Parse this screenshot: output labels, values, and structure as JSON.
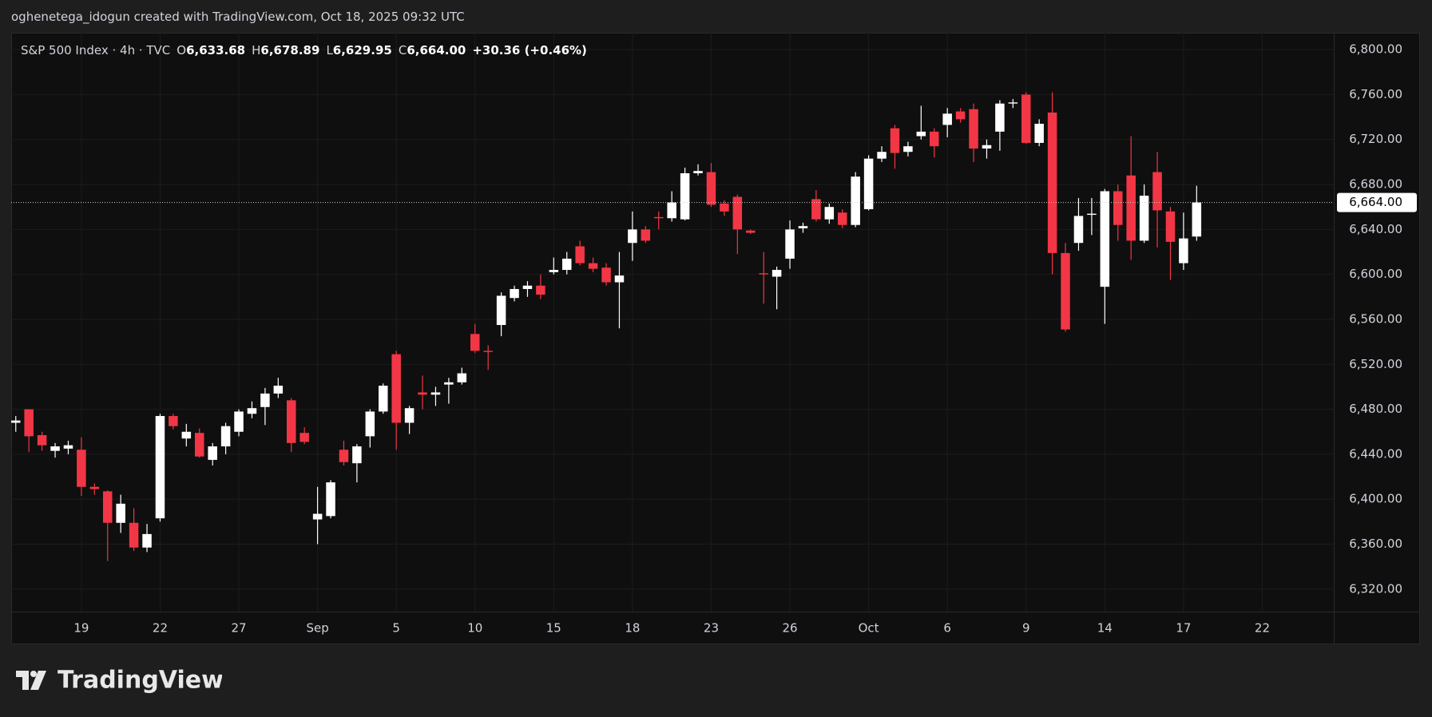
{
  "header": {
    "attribution": "oghenetega_idogun created with TradingView.com, Oct 18, 2025 09:32 UTC"
  },
  "footer": {
    "brand": "TradingView"
  },
  "chart_data": {
    "type": "candlestick",
    "title": "S&P 500 Index · 4h · TVC",
    "ohlc_legend": [
      {
        "key": "O",
        "value": "6,633.68"
      },
      {
        "key": "H",
        "value": "6,678.89"
      },
      {
        "key": "L",
        "value": "6,629.95"
      },
      {
        "key": "C",
        "value": "6,664.00"
      }
    ],
    "change": "+30.36 (+0.46%)",
    "categories": [
      null,
      null,
      null,
      null,
      null,
      "19",
      null,
      null,
      null,
      null,
      null,
      "22",
      null,
      null,
      null,
      null,
      null,
      "27",
      null,
      null,
      null,
      null,
      null,
      "Sep",
      null,
      null,
      null,
      null,
      null,
      "5",
      null,
      null,
      null,
      null,
      null,
      "10",
      null,
      null,
      null,
      null,
      null,
      "15",
      null,
      null,
      null,
      null,
      null,
      "18",
      null,
      null,
      null,
      null,
      null,
      "23",
      null,
      null,
      null,
      null,
      null,
      "26",
      null,
      null,
      null,
      null,
      null,
      "Oct",
      null,
      null,
      null,
      null,
      null,
      "6",
      null,
      null,
      null,
      null,
      null,
      "9",
      null,
      null,
      null,
      null,
      null,
      "14",
      null,
      null,
      null,
      null,
      null,
      "17",
      null,
      null,
      null,
      null,
      null,
      "22"
    ],
    "open": [
      6468,
      6480,
      6457,
      6443,
      6445,
      6444,
      6411,
      6407,
      6379,
      6379,
      6357,
      6383,
      6474,
      6454,
      6459,
      6435,
      6447,
      6460,
      6476,
      6482,
      6494,
      6488,
      6459,
      6382,
      6385,
      6444,
      6432,
      6456,
      6478,
      6529,
      6468,
      6495,
      6493,
      6502,
      6504,
      6547,
      6532,
      6555,
      6579,
      6587,
      6590,
      6602,
      6604,
      6625,
      6610,
      6606,
      6593,
      6628,
      6640,
      6651,
      6650,
      6649,
      6690,
      6691,
      6663,
      6669,
      6639,
      6601,
      6598,
      6614,
      6641,
      6667,
      6649,
      6655,
      6644,
      6658,
      6703,
      6730,
      6709,
      6723,
      6727,
      6733,
      6745,
      6747,
      6712,
      6727,
      6752,
      6760,
      6717,
      6744,
      6619,
      6628,
      6653,
      6589,
      6674,
      6688,
      6630,
      6691,
      6656,
      6610,
      6633.68,
      null,
      null,
      null,
      null,
      null
    ],
    "high": [
      6474,
      6480,
      6460,
      6450,
      6452,
      6455,
      6414,
      6408,
      6404,
      6392,
      6378,
      6476,
      6476,
      6467,
      6463,
      6450,
      6468,
      6480,
      6487,
      6499,
      6508,
      6490,
      6464,
      6411,
      6417,
      6452,
      6449,
      6480,
      6503,
      6532,
      6483,
      6510,
      6500,
      6508,
      6517,
      6556,
      6537,
      6584,
      6590,
      6594,
      6600,
      6615,
      6620,
      6630,
      6615,
      6610,
      6620,
      6656,
      6643,
      6656,
      6674,
      6695,
      6698,
      6699,
      6666,
      6671,
      6640,
      6620,
      6607,
      6648,
      6646,
      6675,
      6663,
      6658,
      6691,
      6706,
      6714,
      6733,
      6718,
      6750,
      6730,
      6748,
      6748,
      6752,
      6720,
      6755,
      6756,
      6762,
      6738,
      6762,
      6628,
      6668,
      6668,
      6676,
      6680,
      6723,
      6680,
      6709,
      6660,
      6655,
      6678.89,
      null,
      null,
      null,
      null,
      null
    ],
    "low": [
      6460,
      6442,
      6443,
      6437,
      6440,
      6403,
      6404,
      6345,
      6370,
      6354,
      6353,
      6380,
      6462,
      6447,
      6437,
      6430,
      6440,
      6456,
      6472,
      6466,
      6490,
      6442,
      6449,
      6360,
      6383,
      6430,
      6415,
      6446,
      6476,
      6444,
      6458,
      6480,
      6483,
      6485,
      6502,
      6530,
      6515,
      6545,
      6576,
      6580,
      6578,
      6600,
      6600,
      6608,
      6602,
      6590,
      6552,
      6612,
      6628,
      6640,
      6647,
      6648,
      6688,
      6660,
      6652,
      6618,
      6636,
      6574,
      6569,
      6605,
      6637,
      6647,
      6645,
      6641,
      6642,
      6657,
      6700,
      6694,
      6705,
      6720,
      6704,
      6722,
      6735,
      6700,
      6703,
      6710,
      6748,
      6716,
      6714,
      6600,
      6549,
      6621,
      6635,
      6556,
      6630,
      6613,
      6628,
      6624,
      6595,
      6604,
      6629.95,
      null,
      null,
      null,
      null,
      null
    ],
    "close": [
      6470,
      6456,
      6448,
      6447,
      6448,
      6411,
      6409,
      6379,
      6396,
      6357,
      6369,
      6474,
      6465,
      6460,
      6438,
      6447,
      6465,
      6478,
      6481,
      6494,
      6501,
      6450,
      6451,
      6387,
      6415,
      6433,
      6447,
      6478,
      6501,
      6468,
      6481,
      6493,
      6495,
      6504,
      6512,
      6532,
      6531,
      6581,
      6587,
      6590,
      6582,
      6604,
      6614,
      6610,
      6605,
      6593,
      6599,
      6640,
      6630,
      6650,
      6664,
      6690,
      6692,
      6662,
      6656,
      6640,
      6637,
      6600,
      6604,
      6640,
      6643,
      6649,
      6660,
      6644,
      6687,
      6703,
      6709,
      6708,
      6714,
      6727,
      6714,
      6743,
      6738,
      6712,
      6715,
      6752,
      6753,
      6717,
      6734,
      6619,
      6551,
      6652,
      6654,
      6674,
      6644,
      6630,
      6670,
      6657,
      6629,
      6632,
      6664,
      null,
      null,
      null,
      null,
      null
    ],
    "up_color": "#ffffff",
    "down_color": "#f23645",
    "ylim": [
      6300,
      6815
    ],
    "yticks": [
      {
        "value": 6320,
        "label": "6,320.00"
      },
      {
        "value": 6360,
        "label": "6,360.00"
      },
      {
        "value": 6400,
        "label": "6,400.00"
      },
      {
        "value": 6440,
        "label": "6,440.00"
      },
      {
        "value": 6480,
        "label": "6,480.00"
      },
      {
        "value": 6520,
        "label": "6,520.00"
      },
      {
        "value": 6560,
        "label": "6,560.00"
      },
      {
        "value": 6600,
        "label": "6,600.00"
      },
      {
        "value": 6640,
        "label": "6,640.00"
      },
      {
        "value": 6680,
        "label": "6,680.00"
      },
      {
        "value": 6720,
        "label": "6,720.00"
      },
      {
        "value": 6760,
        "label": "6,760.00"
      },
      {
        "value": 6800,
        "label": "6,800.00"
      }
    ],
    "grid": true,
    "last_price": {
      "value": 6664,
      "label": "6,664.00"
    }
  }
}
